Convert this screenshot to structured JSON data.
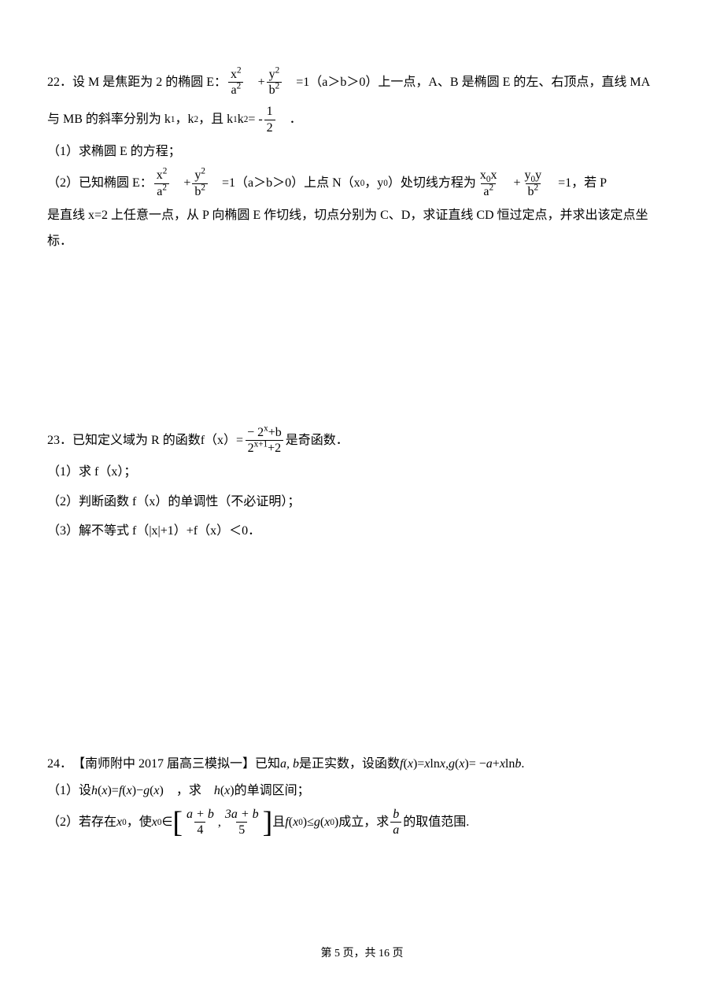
{
  "q22": {
    "num": "22．",
    "line1_a": "设 M 是焦距为 2 的椭圆 E：",
    "frac1_num": "x",
    "frac1_num_sup": "2",
    "frac1_den": "a",
    "frac1_den_sup": "2",
    "plus1": "　+",
    "frac2_num": "y",
    "frac2_num_sup": "2",
    "frac2_den": "b",
    "frac2_den_sup": "2",
    "line1_b": "　=1（a＞b＞0）上一点，A、B 是椭圆 E 的左、右顶点，直线 MA",
    "line2_a": "与 MB 的斜率分别为 k",
    "sub1": "1",
    "line2_b": "，k",
    "sub2": "2",
    "line2_c": "，且 k",
    "sub1b": "1",
    "line2_d": "k",
    "sub2b": "2",
    "line2_e": "= -",
    "frac3_num": "1",
    "frac3_den": "2",
    "line2_f": "　．",
    "part1": "（1）求椭圆 E 的方程；",
    "line3_a": "（2）已知椭圆 E：",
    "line3_b": "　=1（a＞b＞0）上点 N（x",
    "sub0a": "0",
    "line3_c": "，y",
    "sub0b": "0",
    "line3_d": "）处切线方程为",
    "frac4_num_a": "x",
    "frac4_num_sub": "0",
    "frac4_num_b": "x",
    "frac5_num_a": "y",
    "frac5_num_sub": "0",
    "frac5_num_b": "y",
    "line3_e": "　=1，若 P",
    "line4": "是直线 x=2 上任意一点，从 P 向椭圆 E 作切线，切点分别为 C、D，求证直线 CD 恒过定点，并求出该定点坐",
    "line5": "标．"
  },
  "q23": {
    "num": "23．",
    "line1_a": "已知定义域为 R 的函数",
    "fx": "f（x）=",
    "frac1_num_a": "− 2",
    "frac1_num_sup": "x",
    "frac1_num_b": "+b",
    "frac1_den_a": "2",
    "frac1_den_sup": "x+1",
    "frac1_den_b": "+2",
    "line1_b": "是奇函数．",
    "part1": "（1）求 f（x）；",
    "part2": "（2）判断函数 f（x）的单调性（不必证明）；",
    "part3": "（3）解不等式 f（|x|+1）+f（x）＜0．"
  },
  "q24": {
    "num": "24．",
    "line1": "【南师附中 2017 届高三模拟一】已知",
    "ab": "a, b",
    "line1_b": "是正实数，设函数",
    "fx": "f",
    "fx_paren": "(",
    "fx_x": "x",
    "fx_paren2": ")",
    "eq1": " = ",
    "xlnx": "x",
    "ln": "ln",
    "x2": "x,",
    "gx": " g",
    "gx_x": "x",
    "eq2": " = −",
    "a": "a",
    "plus": " + ",
    "x3": "x",
    "lnb": "ln",
    "b": "b",
    "dot": ".",
    "part1_a": "（1）设",
    "hx": "h",
    "hx_x": "x",
    "eq3": " = ",
    "fx2": "f",
    "minus": " − ",
    "gx2": "g",
    "part1_b": "　，求　",
    "part1_c": "的单调区间；",
    "part2_a": "（2）若存在",
    "x0": "x",
    "sub0": "0",
    "part2_b": "，使",
    "in": " ∈ ",
    "frac_left_num": "a + b",
    "frac_left_den": "4",
    "comma": ",",
    "frac_right_num": "3a + b",
    "frac_right_den": "5",
    "part2_c": "且",
    "le": " ≤ ",
    "part2_d": "成立，求",
    "frac_ba_num": "b",
    "frac_ba_den": "a",
    "part2_e": "的取值范围."
  },
  "footer": {
    "a": "第 ",
    "page": "5",
    "b": " 页，共 ",
    "total": "16",
    "c": " 页"
  }
}
